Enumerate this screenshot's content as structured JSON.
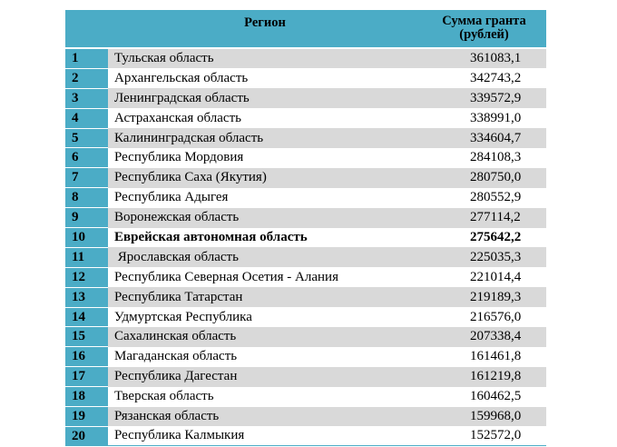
{
  "table": {
    "header": {
      "region": "Регион",
      "sum": "Сумма гранта (рублей)"
    },
    "highlight_color": "#4bacc6",
    "stripe_color": "#d9d9d9",
    "rows": [
      {
        "num": "1",
        "region": "Тульская область",
        "sum": "361083,1"
      },
      {
        "num": "2",
        "region": "Архангельская область",
        "sum": "342743,2"
      },
      {
        "num": "3",
        "region": "Ленинградская область",
        "sum": "339572,9"
      },
      {
        "num": "4",
        "region": "Астраханская область",
        "sum": "338991,0"
      },
      {
        "num": "5",
        "region": "Калининградская область",
        "sum": "334604,7"
      },
      {
        "num": "6",
        "region": "Республика Мордовия",
        "sum": "284108,3"
      },
      {
        "num": "7",
        "region": "Республика Саха (Якутия)",
        "sum": "280750,0"
      },
      {
        "num": "8",
        "region": "Республика Адыгея",
        "sum": "280552,9"
      },
      {
        "num": "9",
        "region": "Воронежская область",
        "sum": "277114,2"
      },
      {
        "num": "10",
        "region": "Еврейская автономная область",
        "sum": "275642,2"
      },
      {
        "num": "11",
        "region": " Ярославская область",
        "sum": "225035,3"
      },
      {
        "num": "12",
        "region": "Республика Северная Осетия - Алания",
        "sum": "221014,4"
      },
      {
        "num": "13",
        "region": "Республика Татарстан",
        "sum": "219189,3"
      },
      {
        "num": "14",
        "region": "Удмуртская Республика",
        "sum": "216576,0"
      },
      {
        "num": "15",
        "region": "Сахалинская область",
        "sum": "207338,4"
      },
      {
        "num": "16",
        "region": "Магаданская область",
        "sum": "161461,8"
      },
      {
        "num": "17",
        "region": "Республика Дагестан",
        "sum": "161219,8"
      },
      {
        "num": "18",
        "region": "Тверская область",
        "sum": "160462,5"
      },
      {
        "num": "19",
        "region": "Рязанская область",
        "sum": "159968,0"
      },
      {
        "num": "20",
        "region": "Республика Калмыкия",
        "sum": "152572,0"
      }
    ]
  }
}
